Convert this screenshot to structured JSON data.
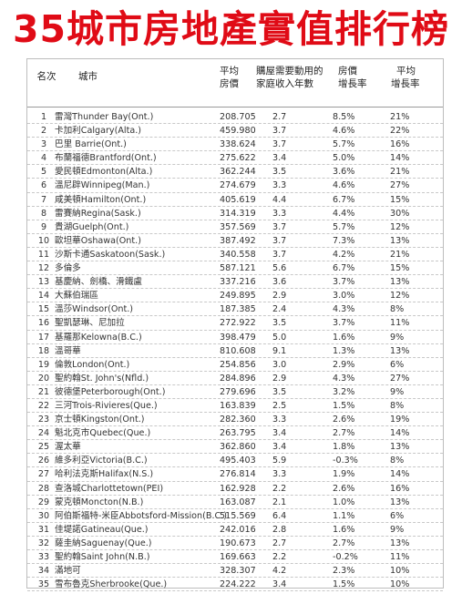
{
  "title": "35城市房地產實值排行榜",
  "headers": {
    "rank": "名次",
    "city": "城市",
    "avg_price": [
      "平均",
      "房價"
    ],
    "years": [
      "購屋需要動用的",
      "家庭收入年數"
    ],
    "growth": [
      "房價",
      "增長率"
    ],
    "avg_growth": [
      "平均",
      "增長率"
    ]
  },
  "rows": [
    {
      "rank": "1",
      "city": "雷灣Thunder Bay(Ont.)",
      "price": "208.705",
      "years": "2.7",
      "growth": "8.5%",
      "avg": "21%"
    },
    {
      "rank": "2",
      "city": "卡加利Calgary(Alta.)",
      "price": "459.980",
      "years": "3.7",
      "growth": "4.6%",
      "avg": "22%"
    },
    {
      "rank": "3",
      "city": "巴里 Barrie(Ont.)",
      "price": "338.624",
      "years": "3.7",
      "growth": "5.7%",
      "avg": "16%"
    },
    {
      "rank": "4",
      "city": "布蘭福德Brantford(Ont.)",
      "price": "275.622",
      "years": "3.4",
      "growth": "5.0%",
      "avg": "14%"
    },
    {
      "rank": "5",
      "city": "愛民頓Edmonton(Alta.)",
      "price": "362.244",
      "years": "3.5",
      "growth": "3.6%",
      "avg": "21%"
    },
    {
      "rank": "6",
      "city": "溫尼辟Winnipeg(Man.)",
      "price": "274.679",
      "years": "3.3",
      "growth": "4.6%",
      "avg": "27%"
    },
    {
      "rank": "7",
      "city": "咸美頓Hamilton(Ont.)",
      "price": "405.619",
      "years": "4.4",
      "growth": "6.7%",
      "avg": "15%"
    },
    {
      "rank": "8",
      "city": "雷賽納Regina(Sask.)",
      "price": "314.319",
      "years": "3.3",
      "growth": "4.4%",
      "avg": "30%"
    },
    {
      "rank": "9",
      "city": "貴湖Guelph(Ont.)",
      "price": "357.569",
      "years": "3.7",
      "growth": "5.7%",
      "avg": "12%"
    },
    {
      "rank": "10",
      "city": "歐坦華Oshawa(Ont.)",
      "price": "387.492",
      "years": "3.7",
      "growth": "7.3%",
      "avg": "13%"
    },
    {
      "rank": "11",
      "city": "沙斯卡通Saskatoon(Sask.)",
      "price": "340.558",
      "years": "3.7",
      "growth": "4.2%",
      "avg": "21%"
    },
    {
      "rank": "12",
      "city": "多倫多",
      "price": "587.121",
      "years": "5.6",
      "growth": "6.7%",
      "avg": "15%"
    },
    {
      "rank": "13",
      "city": "基慶納、劍橋、滑鐵盧",
      "price": "337.216",
      "years": "3.6",
      "growth": "3.7%",
      "avg": "13%"
    },
    {
      "rank": "14",
      "city": "大蘇伯瑞區",
      "price": "249.895",
      "years": "2.9",
      "growth": "3.0%",
      "avg": "12%"
    },
    {
      "rank": "15",
      "city": "溫莎Windsor(Ont.)",
      "price": "187.385",
      "years": "2.4",
      "growth": "4.3%",
      "avg": "8%"
    },
    {
      "rank": "16",
      "city": "聖凱瑟琳、尼加拉",
      "price": "272.922",
      "years": "3.5",
      "growth": "3.7%",
      "avg": "11%"
    },
    {
      "rank": "17",
      "city": "基羅那Kelowna(B.C.)",
      "price": "398.479",
      "years": "5.0",
      "growth": "1.6%",
      "avg": "9%"
    },
    {
      "rank": "18",
      "city": "溫哥華",
      "price": "810.608",
      "years": "9.1",
      "growth": "1.3%",
      "avg": "13%"
    },
    {
      "rank": "19",
      "city": "倫敦London(Ont.)",
      "price": "254.856",
      "years": "3.0",
      "growth": "2.9%",
      "avg": "6%"
    },
    {
      "rank": "20",
      "city": "聖約翰St. John's(Nfld.)",
      "price": "284.896",
      "years": "2.9",
      "growth": "4.3%",
      "avg": "27%"
    },
    {
      "rank": "21",
      "city": "彼德堡Peterborough(Ont.)",
      "price": "279.696",
      "years": "3.5",
      "growth": "3.2%",
      "avg": "9%"
    },
    {
      "rank": "22",
      "city": "三河Trois-Rivieres(Que.)",
      "price": "163.839",
      "years": "2.5",
      "growth": "1.5%",
      "avg": "8%"
    },
    {
      "rank": "23",
      "city": "京士頓Kingston(Ont.)",
      "price": "282.360",
      "years": "3.3",
      "growth": "2.6%",
      "avg": "19%"
    },
    {
      "rank": "24",
      "city": "魁北克市Quebec(Que.)",
      "price": "263.795",
      "years": "3.4",
      "growth": "2.7%",
      "avg": "14%"
    },
    {
      "rank": "25",
      "city": "渥太華",
      "price": "362.860",
      "years": "3.4",
      "growth": "1.8%",
      "avg": "13%"
    },
    {
      "rank": "26",
      "city": "維多利亞Victoria(B.C.)",
      "price": "495.403",
      "years": "5.9",
      "growth": "-0.3%",
      "avg": "8%"
    },
    {
      "rank": "27",
      "city": "哈利法克斯Halifax(N.S.)",
      "price": "276.814",
      "years": "3.3",
      "growth": "1.9%",
      "avg": "14%"
    },
    {
      "rank": "28",
      "city": "查洛城Charlottetown(PEI)",
      "price": "162.928",
      "years": "2.2",
      "growth": "2.6%",
      "avg": "16%"
    },
    {
      "rank": "29",
      "city": "蒙克頓Moncton(N.B.)",
      "price": "163.087",
      "years": "2.1",
      "growth": "1.0%",
      "avg": "13%"
    },
    {
      "rank": "30",
      "city": "阿伯斯福特-米臣Abbotsford-Mission(B.C.)",
      "price": "515.569",
      "years": "6.4",
      "growth": "1.1%",
      "avg": "6%"
    },
    {
      "rank": "31",
      "city": "佳堤諾Gatineau(Que.)",
      "price": "242.016",
      "years": "2.8",
      "growth": "1.6%",
      "avg": "9%"
    },
    {
      "rank": "32",
      "city": "薩圭納Saguenay(Que.)",
      "price": "190.673",
      "years": "2.7",
      "growth": "2.7%",
      "avg": "13%"
    },
    {
      "rank": "33",
      "city": "聖約翰Saint John(N.B.)",
      "price": "169.663",
      "years": "2.2",
      "growth": "-0.2%",
      "avg": "11%"
    },
    {
      "rank": "34",
      "city": "滿地可",
      "price": "328.307",
      "years": "4.2",
      "growth": "2.3%",
      "avg": "10%"
    },
    {
      "rank": "35",
      "city": "雪布魯克Sherbrooke(Que.)",
      "price": "224.222",
      "years": "3.4",
      "growth": "1.5%",
      "avg": "10%"
    }
  ]
}
